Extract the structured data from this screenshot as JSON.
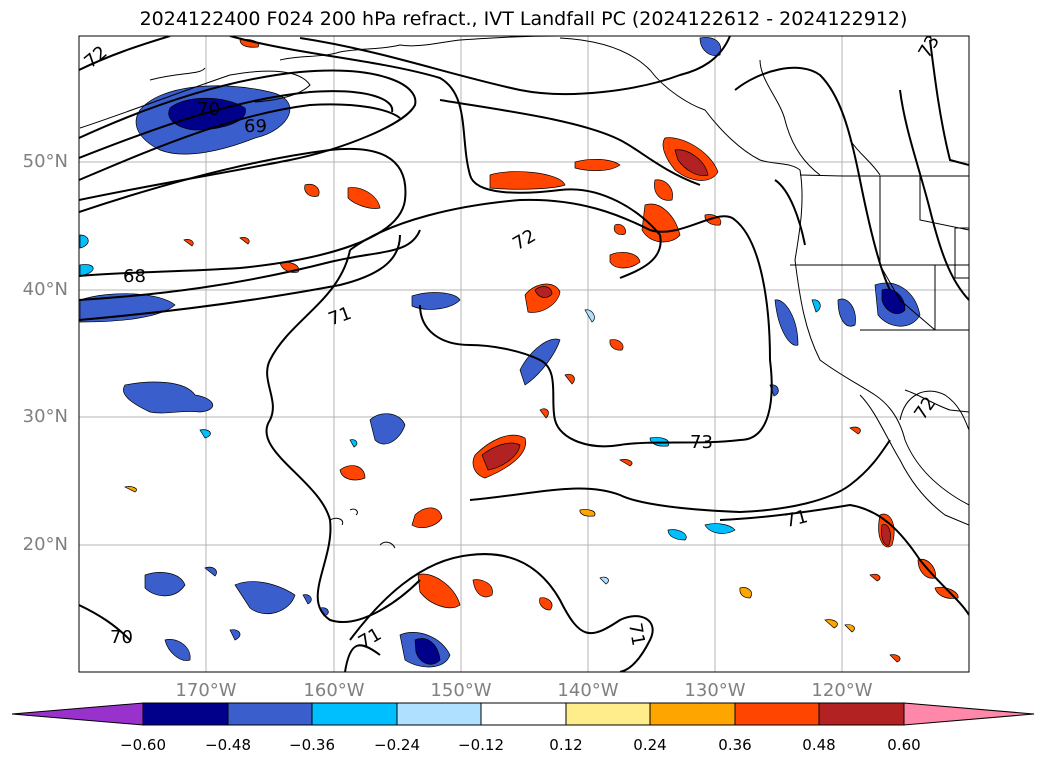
{
  "title": "2024122400 F024 200 hPa refract., IVT Landfall PC (2024122612 - 2024122912)",
  "lat_labels": [
    "50°N",
    "40°N",
    "30°N",
    "20°N"
  ],
  "lon_labels": [
    "170°W",
    "160°W",
    "150°W",
    "140°W",
    "130°W",
    "120°W"
  ],
  "contour_labels": [
    "72",
    "70",
    "69",
    "68",
    "71",
    "72",
    "73",
    "71",
    "71",
    "70",
    "71",
    "73",
    "72"
  ],
  "colorbar": {
    "colors": [
      "#9932cc",
      "#00008b",
      "#3a5fcd",
      "#00bfff",
      "#b0e0ff",
      "#ffffff",
      "#ffec8b",
      "#ffa500",
      "#ff4500",
      "#b22222",
      "#ff88aa"
    ],
    "tick_labels": [
      "−0.60",
      "−0.48",
      "−0.36",
      "−0.24",
      "−0.12",
      "0.12",
      "0.24",
      "0.36",
      "0.48",
      "0.60"
    ]
  }
}
